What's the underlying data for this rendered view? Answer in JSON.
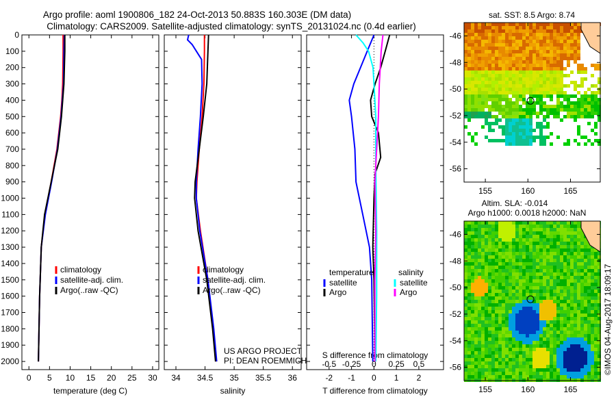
{
  "title_line1": "Argo profile: aoml 1900806_182 24-Oct-2013 50.883S 160.303E (DM data)",
  "title_line2": "Climatology: CARS2009. Satellite-adjusted climatology: synTS_20131024.nc (0.4d earlier)",
  "project_line1": "US ARGO PROJECT",
  "project_line2": "PI: DEAN ROEMMICH",
  "watermark": "©IMOS 04-Aug-2017 18:09:17",
  "colors": {
    "climatology": "#ff0000",
    "satellite": "#0000ff",
    "argo": "#000000",
    "sal_satellite": "#00ffff",
    "sal_argo": "#ff00ff"
  },
  "chart_data": [
    {
      "type": "line",
      "name": "temperature",
      "xlabel": "temperature (deg C)",
      "ylabel": "",
      "xlim": [
        -1.7,
        31.5
      ],
      "ylim": [
        2050,
        0
      ],
      "xticks": [
        0,
        5,
        10,
        15,
        20,
        25,
        30
      ],
      "yticks": [
        0,
        100,
        200,
        300,
        400,
        500,
        600,
        700,
        800,
        900,
        1000,
        1100,
        1200,
        1300,
        1400,
        1500,
        1600,
        1700,
        1800,
        1900,
        2000
      ],
      "legend": [
        "climatology",
        "satellite-adj. clim.",
        "Argo(..raw -QC)"
      ],
      "series": [
        {
          "name": "climatology",
          "color": "#ff0000",
          "depth": [
            0,
            100,
            300,
            400,
            500,
            700,
            900,
            1100,
            1300,
            1600,
            2000
          ],
          "values": [
            8.3,
            8.3,
            8.2,
            8.0,
            7.7,
            6.8,
            5.4,
            3.9,
            3.0,
            2.6,
            2.3
          ]
        },
        {
          "name": "satellite-adj. clim.",
          "color": "#0000ff",
          "depth": [
            0,
            100,
            300,
            400,
            500,
            700,
            900,
            1100,
            1300,
            1600,
            2000
          ],
          "values": [
            8.6,
            8.5,
            8.4,
            8.1,
            7.8,
            6.9,
            5.5,
            4.0,
            3.0,
            2.6,
            2.3
          ]
        },
        {
          "name": "Argo(..raw -QC)",
          "color": "#000000",
          "depth": [
            0,
            100,
            300,
            400,
            500,
            700,
            900,
            1100,
            1300,
            1600,
            2000
          ],
          "values": [
            8.7,
            8.7,
            8.5,
            8.2,
            7.9,
            7.0,
            5.4,
            3.8,
            3.0,
            2.6,
            2.3
          ]
        }
      ]
    },
    {
      "type": "line",
      "name": "salinity",
      "xlabel": "salinity",
      "ylabel": "",
      "xlim": [
        33.8,
        36.15
      ],
      "ylim": [
        2050,
        0
      ],
      "xticks": [
        34,
        34.5,
        35,
        35.5,
        36
      ],
      "legend": [
        "climatology",
        "satellite-adj. clim.",
        "Argo(..raw -QC)"
      ],
      "series": [
        {
          "name": "climatology",
          "color": "#ff0000",
          "depth": [
            0,
            100,
            300,
            500,
            700,
            900,
            1000,
            1200,
            1500,
            1800,
            2000
          ],
          "values": [
            34.49,
            34.49,
            34.48,
            34.45,
            34.4,
            34.36,
            34.35,
            34.42,
            34.55,
            34.64,
            34.69
          ]
        },
        {
          "name": "satellite-adj. clim.",
          "color": "#0000ff",
          "depth": [
            0,
            30,
            60,
            150,
            300,
            500,
            700,
            900,
            1000,
            1200,
            1500,
            1800,
            2000
          ],
          "values": [
            34.22,
            34.2,
            34.28,
            34.44,
            34.45,
            34.42,
            34.38,
            34.35,
            34.35,
            34.41,
            34.55,
            34.65,
            34.7
          ]
        },
        {
          "name": "Argo(..raw -QC)",
          "color": "#000000",
          "depth": [
            0,
            100,
            300,
            500,
            700,
            900,
            1000,
            1200,
            1500,
            1800,
            2000
          ],
          "values": [
            34.56,
            34.55,
            34.53,
            34.47,
            34.4,
            34.33,
            34.32,
            34.38,
            34.53,
            34.63,
            34.68
          ]
        }
      ]
    },
    {
      "type": "line",
      "name": "difference",
      "xlabel": "T difference from climatology",
      "x2label": "S difference from climatology",
      "xlim": [
        -3,
        3.1
      ],
      "ylim": [
        2050,
        0
      ],
      "xticks": [
        -2,
        -1,
        0,
        1,
        2
      ],
      "x2ticks": [
        -0.5,
        -0.25,
        0,
        0.25,
        0.5
      ],
      "legend_title_t": "temperature",
      "legend_title_s": "salinity",
      "legend": [
        "satellite",
        "Argo",
        "satellite",
        "Argo"
      ],
      "series": [
        {
          "name": "T satellite",
          "color": "#0000ff",
          "depth": [
            0,
            100,
            200,
            300,
            400,
            500,
            700,
            900,
            1100,
            1300,
            1500,
            2000
          ],
          "values": [
            0,
            -0.3,
            -0.6,
            -0.9,
            -1.1,
            -1.0,
            -0.85,
            -0.8,
            -0.5,
            -0.2,
            -0.1,
            -0.05
          ]
        },
        {
          "name": "T Argo",
          "color": "#000000",
          "depth": [
            0,
            100,
            200,
            300,
            400,
            500,
            600,
            750,
            850,
            1000,
            1300,
            1500,
            2000
          ],
          "values": [
            0.7,
            0.5,
            0.3,
            0.05,
            -0.15,
            -0.1,
            0.2,
            0.3,
            0.05,
            0,
            -0.05,
            0,
            0.05
          ]
        },
        {
          "name": "S satellite",
          "color": "#00ffff",
          "depth": [
            0,
            50,
            100,
            200,
            300,
            500,
            800,
            1200,
            1600,
            2000
          ],
          "values": [
            -0.2,
            -0.12,
            -0.06,
            -0.01,
            0,
            0.02,
            0.02,
            0.03,
            0.03,
            0.02
          ],
          "scale": "S"
        },
        {
          "name": "S Argo",
          "color": "#ff00ff",
          "depth": [
            0,
            100,
            300,
            500,
            700,
            900,
            1200,
            1500,
            2000
          ],
          "values": [
            0.1,
            0.08,
            0.06,
            0.05,
            0.03,
            0.01,
            0.02,
            0.01,
            0.01
          ],
          "scale": "S"
        }
      ]
    },
    {
      "type": "heatmap",
      "name": "sst-map",
      "title": "sat. SST: 8.5 Argo: 8.74",
      "xlim": [
        152.5,
        168.5
      ],
      "ylim": [
        -57,
        -45
      ],
      "xticks": [
        155,
        160,
        165
      ],
      "yticks": [
        -46,
        -48,
        -50,
        -52,
        -54,
        -56
      ],
      "marker": {
        "lon": 160.303,
        "lat": -50.883
      }
    },
    {
      "type": "heatmap",
      "name": "sla-map",
      "title_line1": "Altim. SLA: -0.014",
      "title_line2": "Argo h1000: 0.0018 h2000: NaN",
      "xlim": [
        152.5,
        168.5
      ],
      "ylim": [
        -57,
        -45
      ],
      "xticks": [
        155,
        160,
        165
      ],
      "yticks": [
        -46,
        -48,
        -50,
        -52,
        -54,
        -56
      ],
      "marker": {
        "lon": 160.303,
        "lat": -50.883
      }
    }
  ]
}
